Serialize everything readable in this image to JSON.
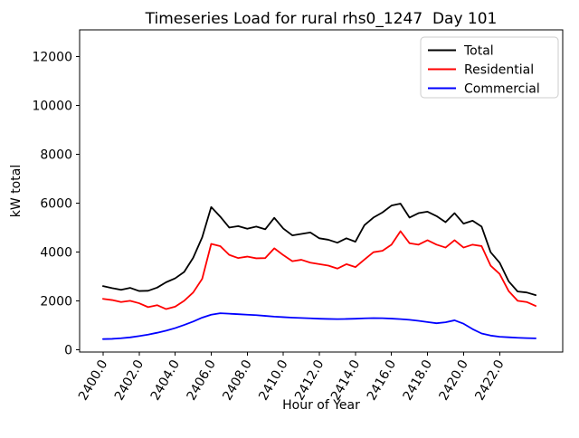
{
  "chart_data": {
    "type": "line",
    "title": "Timeseries Load for rural rhs0_1247  Day 101",
    "xlabel": "Hour of Year",
    "ylabel": "kW total",
    "xlim": [
      2398.7,
      2425.5
    ],
    "ylim": [
      -100,
      13100
    ],
    "grid": false,
    "legend_position": "upper right",
    "background": "#ffffff",
    "x_ticks": {
      "values": [
        2400,
        2402,
        2404,
        2406,
        2408,
        2410,
        2412,
        2414,
        2416,
        2418,
        2420,
        2422
      ],
      "labels": [
        "2400.0",
        "2402.0",
        "2404.0",
        "2406.0",
        "2408.0",
        "2410.0",
        "2412.0",
        "2414.0",
        "2416.0",
        "2418.0",
        "2420.0",
        "2422.0"
      ]
    },
    "y_ticks": {
      "values": [
        0,
        2000,
        4000,
        6000,
        8000,
        10000,
        12000
      ],
      "labels": [
        "0",
        "2000",
        "4000",
        "6000",
        "8000",
        "10000",
        "12000"
      ]
    },
    "x": [
      2400.0,
      2400.5,
      2401.0,
      2401.5,
      2402.0,
      2402.5,
      2403.0,
      2403.5,
      2404.0,
      2404.5,
      2405.0,
      2405.5,
      2406.0,
      2406.5,
      2407.0,
      2407.5,
      2408.0,
      2408.5,
      2409.0,
      2409.5,
      2410.0,
      2410.5,
      2411.0,
      2411.5,
      2412.0,
      2412.5,
      2413.0,
      2413.5,
      2414.0,
      2414.5,
      2415.0,
      2415.5,
      2416.0,
      2416.5,
      2417.0,
      2417.5,
      2418.0,
      2418.5,
      2419.0,
      2419.5,
      2420.0,
      2420.5,
      2421.0,
      2421.5,
      2422.0,
      2422.5,
      2423.0,
      2423.5,
      2424.0
    ],
    "series": [
      {
        "name": "Total",
        "color": "#000000",
        "values": [
          2600,
          2520,
          2450,
          2530,
          2400,
          2410,
          2540,
          2760,
          2920,
          3180,
          3760,
          4600,
          5840,
          5450,
          5000,
          5060,
          4950,
          5040,
          4930,
          5400,
          4960,
          4680,
          4740,
          4800,
          4560,
          4500,
          4380,
          4560,
          4420,
          5100,
          5410,
          5620,
          5900,
          5980,
          5410,
          5590,
          5650,
          5470,
          5220,
          5590,
          5160,
          5280,
          5040,
          3990,
          3560,
          2800,
          2380,
          2340,
          2230
        ]
      },
      {
        "name": "Residential",
        "color": "#ff0000",
        "values": [
          2080,
          2030,
          1950,
          2000,
          1900,
          1740,
          1820,
          1660,
          1760,
          2000,
          2340,
          2900,
          4330,
          4240,
          3880,
          3750,
          3810,
          3740,
          3750,
          4150,
          3870,
          3620,
          3680,
          3560,
          3500,
          3440,
          3320,
          3500,
          3380,
          3690,
          3990,
          4050,
          4300,
          4850,
          4360,
          4300,
          4480,
          4300,
          4180,
          4480,
          4180,
          4300,
          4240,
          3440,
          3100,
          2400,
          2000,
          1950,
          1790
        ]
      },
      {
        "name": "Commercial",
        "color": "#0000ff",
        "values": [
          430,
          440,
          465,
          500,
          555,
          615,
          690,
          775,
          880,
          1010,
          1150,
          1310,
          1430,
          1490,
          1470,
          1450,
          1430,
          1410,
          1380,
          1350,
          1330,
          1310,
          1295,
          1280,
          1265,
          1255,
          1250,
          1255,
          1265,
          1280,
          1290,
          1285,
          1270,
          1250,
          1220,
          1180,
          1130,
          1080,
          1120,
          1200,
          1060,
          840,
          660,
          575,
          525,
          505,
          485,
          470,
          460
        ]
      }
    ],
    "plot_border_color": "#000000",
    "legend_border_color": "#cccccc"
  }
}
